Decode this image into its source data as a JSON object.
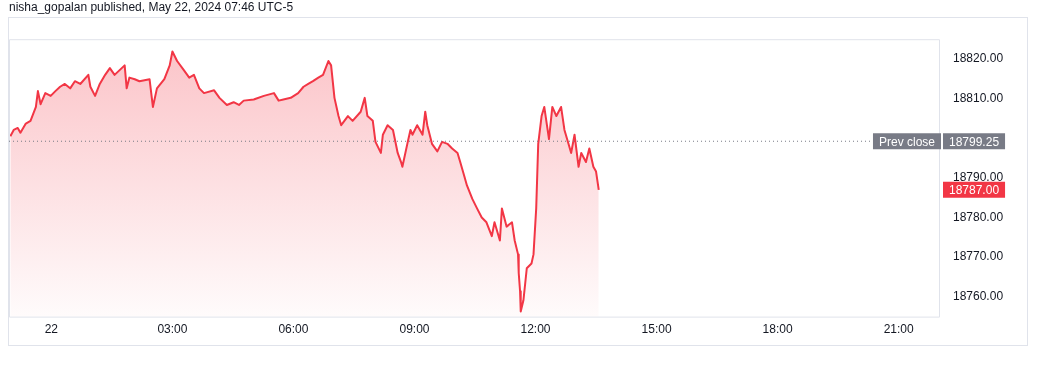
{
  "chart_data": {
    "type": "area",
    "title": "nisha_gopalan published, May 22, 2024 07:46 UTC-5",
    "x": [
      "2024-05-21T22:59",
      "2024-05-21T23:04",
      "2024-05-21T23:10",
      "2024-05-21T23:14",
      "2024-05-21T23:22",
      "2024-05-21T23:29",
      "2024-05-21T23:37",
      "2024-05-21T23:40",
      "2024-05-21T23:44",
      "2024-05-21T23:51",
      "2024-05-21T23:59",
      "2024-05-22T00:06",
      "2024-05-22T00:13",
      "2024-05-22T00:20",
      "2024-05-22T00:28",
      "2024-05-22T00:35",
      "2024-05-22T00:43",
      "2024-05-22T00:55",
      "2024-05-22T00:58",
      "2024-05-22T01:05",
      "2024-05-22T01:12",
      "2024-05-22T01:20",
      "2024-05-22T01:27",
      "2024-05-22T01:34",
      "2024-05-22T01:49",
      "2024-05-22T01:52",
      "2024-05-22T01:56",
      "2024-05-22T02:04",
      "2024-05-22T02:11",
      "2024-05-22T02:26",
      "2024-05-22T02:31",
      "2024-05-22T02:37",
      "2024-05-22T02:48",
      "2024-05-22T02:56",
      "2024-05-22T03:00",
      "2024-05-22T03:07",
      "2024-05-22T03:17",
      "2024-05-22T03:25",
      "2024-05-22T03:32",
      "2024-05-22T03:40",
      "2024-05-22T03:47",
      "2024-05-22T04:02",
      "2024-05-22T04:10",
      "2024-05-22T04:21",
      "2024-05-22T04:31",
      "2024-05-22T04:39",
      "2024-05-22T04:46",
      "2024-05-22T05:01",
      "2024-05-22T05:16",
      "2024-05-22T05:31",
      "2024-05-22T05:38",
      "2024-05-22T05:45",
      "2024-05-22T05:56",
      "2024-05-22T06:07",
      "2024-05-22T06:15",
      "2024-05-22T06:22",
      "2024-05-22T06:29",
      "2024-05-22T06:37",
      "2024-05-22T06:44",
      "2024-05-22T06:52",
      "2024-05-22T06:56",
      "2024-05-22T07:01",
      "2024-05-22T07:07",
      "2024-05-22T07:11",
      "2024-05-22T07:21",
      "2024-05-22T07:28",
      "2024-05-22T07:40",
      "2024-05-22T07:46",
      "2024-05-22T07:50",
      "2024-05-22T07:58",
      "2024-05-22T08:02",
      "2024-05-22T08:10",
      "2024-05-22T08:13",
      "2024-05-22T08:20",
      "2024-05-22T08:28",
      "2024-05-22T08:35",
      "2024-05-22T08:40",
      "2024-05-22T08:42",
      "2024-05-22T08:50",
      "2024-05-22T08:54",
      "2024-05-22T08:57",
      "2024-05-22T09:04",
      "2024-05-22T09:12",
      "2024-05-22T09:16",
      "2024-05-22T09:19",
      "2024-05-22T09:26",
      "2024-05-22T09:34",
      "2024-05-22T09:41",
      "2024-05-22T09:49",
      "2024-05-22T09:56",
      "2024-05-22T10:04",
      "2024-05-22T10:08",
      "2024-05-22T10:14",
      "2024-05-22T10:18",
      "2024-05-22T10:26",
      "2024-05-22T10:33",
      "2024-05-22T10:40",
      "2024-05-22T10:47",
      "2024-05-22T10:55",
      "2024-05-22T10:59",
      "2024-05-22T11:07",
      "2024-05-22T11:10",
      "2024-05-22T11:17",
      "2024-05-22T11:25",
      "2024-05-22T11:29",
      "2024-05-22T11:34",
      "2024-05-22T11:35",
      "2024-05-22T11:37",
      "2024-05-22T11:38",
      "2024-05-22T11:42",
      "2024-05-22T11:47",
      "2024-05-22T11:54",
      "2024-05-22T11:57",
      "2024-05-22T12:01",
      "2024-05-22T12:04",
      "2024-05-22T12:09",
      "2024-05-22T12:13",
      "2024-05-22T12:20",
      "2024-05-22T12:25",
      "2024-05-22T12:31",
      "2024-05-22T12:38",
      "2024-05-22T12:43",
      "2024-05-22T12:49",
      "2024-05-22T12:53",
      "2024-05-22T12:58",
      "2024-05-22T13:04",
      "2024-05-22T13:08",
      "2024-05-22T13:15",
      "2024-05-22T13:20",
      "2024-05-22T13:26",
      "2024-05-22T13:30",
      "2024-05-22T13:34"
    ],
    "series": [
      {
        "color": "#f23645",
        "values": [
          18800.5,
          18802.1,
          18802.6,
          18801.4,
          18803.7,
          18804.4,
          18807.9,
          18811.9,
          18808.6,
          18811.4,
          18810.7,
          18811.9,
          18813.0,
          18813.7,
          18812.6,
          18814.4,
          18813.7,
          18816.0,
          18813.0,
          18810.7,
          18813.7,
          18816.0,
          18817.7,
          18816.0,
          18818.4,
          18812.6,
          18815.3,
          18814.9,
          18814.4,
          18814.9,
          18807.9,
          18812.6,
          18814.9,
          18818.4,
          18821.9,
          18819.5,
          18817.2,
          18815.3,
          18816.0,
          18812.6,
          18811.4,
          18812.1,
          18810.2,
          18808.4,
          18809.1,
          18808.4,
          18809.5,
          18809.8,
          18810.7,
          18811.4,
          18809.5,
          18809.8,
          18810.2,
          18811.4,
          18813.0,
          18813.7,
          18814.4,
          18815.3,
          18816.0,
          18819.5,
          18818.4,
          18810.2,
          18805.6,
          18803.3,
          18805.6,
          18804.4,
          18806.7,
          18810.2,
          18805.6,
          18804.4,
          18799.1,
          18796.3,
          18800.9,
          18803.3,
          18802.1,
          18796.3,
          18794.0,
          18792.8,
          18799.1,
          18802.1,
          18800.9,
          18803.3,
          18800.9,
          18806.7,
          18803.3,
          18798.6,
          18796.7,
          18799.1,
          18798.6,
          18797.4,
          18796.3,
          18794.0,
          18790.5,
          18788.1,
          18784.7,
          18782.3,
          18780.0,
          18778.8,
          18775.3,
          18778.8,
          18774.2,
          18782.3,
          18777.7,
          18778.8,
          18774.2,
          18770.7,
          18766.0,
          18761.4,
          18756.3,
          18759.1,
          18767.2,
          18768.4,
          18770.7,
          18782.3,
          18798.6,
          18805.6,
          18807.9,
          18799.8,
          18807.9,
          18805.6,
          18807.9,
          18802.1,
          18798.6,
          18796.3,
          18800.9,
          18792.8,
          18796.3,
          18794.0,
          18797.4,
          18792.8,
          18791.6,
          18787.0
        ]
      }
    ],
    "xlim": [
      "2024-05-21T22:57",
      "2024-05-22T22:00"
    ],
    "xticks": [
      {
        "value": "2024-05-22T00:00",
        "label": "22"
      },
      {
        "value": "2024-05-22T03:00",
        "label": "03:00"
      },
      {
        "value": "2024-05-22T06:00",
        "label": "06:00"
      },
      {
        "value": "2024-05-22T09:00",
        "label": "09:00"
      },
      {
        "value": "2024-05-22T12:00",
        "label": "12:00"
      },
      {
        "value": "2024-05-22T15:00",
        "label": "15:00"
      },
      {
        "value": "2024-05-22T18:00",
        "label": "18:00"
      },
      {
        "value": "2024-05-22T21:00",
        "label": "21:00"
      }
    ],
    "ylim": [
      18755,
      18825
    ],
    "yticks": [
      {
        "value": 18760,
        "label": "18760.00"
      },
      {
        "value": 18770,
        "label": "18770.00"
      },
      {
        "value": 18780,
        "label": "18780.00"
      },
      {
        "value": 18790,
        "label": "18790.00"
      },
      {
        "value": 18810,
        "label": "18810.00"
      },
      {
        "value": 18820,
        "label": "18820.00"
      }
    ],
    "ref_lines": [
      {
        "axis": "y",
        "value": 18799.25,
        "label": "Prev close",
        "color": "#787b86",
        "line_style": "dotted"
      }
    ],
    "annotations": [
      "18799.25",
      "18787.00"
    ],
    "grid": false,
    "legend": false
  }
}
